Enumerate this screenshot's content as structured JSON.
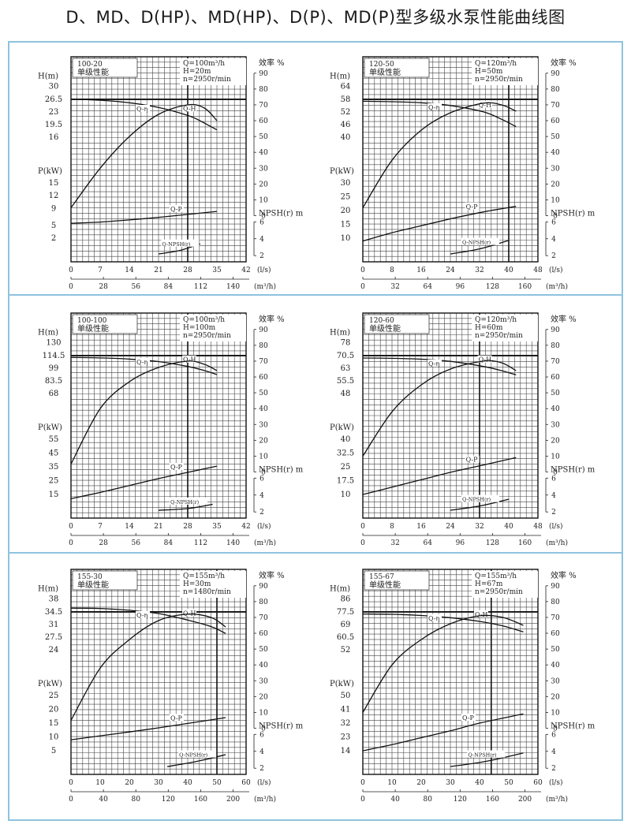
{
  "page": {
    "title": "D、MD、D(HP)、MD(HP)、D(P)、MD(P)型多级水泵性能曲线图"
  },
  "colors": {
    "frame": "#8ec3de",
    "grid": "#333333",
    "curve": "#111111",
    "background": "#ffffff"
  },
  "chart_data": [
    {
      "type": "line",
      "model": "100-20",
      "sub": "单级性能",
      "specs": [
        "Q=100m³/h",
        "H=20m",
        "n=2950r/min"
      ],
      "x_unit": "(l/s)",
      "x2_unit": "(m³/h)",
      "x_ticks": [
        "0",
        "7",
        "14",
        "21",
        "28",
        "35",
        "42"
      ],
      "x_max": 42,
      "x2_ticks": [
        "0",
        "28",
        "56",
        "84",
        "112",
        "140"
      ],
      "x2_max": 151.2,
      "h_label": "H(m)",
      "h_ticks": [
        "30",
        "26.5",
        "23",
        "19.5",
        "16"
      ],
      "p_label": "P(kW)",
      "p_ticks": [
        "15",
        "12",
        "9",
        "5",
        "2"
      ],
      "eff_label": "效率 %",
      "eff_ticks": [
        "90",
        "80",
        "70",
        "60",
        "50",
        "40",
        "30",
        "20",
        "10",
        "0"
      ],
      "npsh_label": "NPSH(r) m",
      "npsh_ticks": [
        "6",
        "4",
        "2"
      ],
      "guide_x": 28,
      "series": [
        {
          "name": "Q-H",
          "x": [
            0,
            7,
            14,
            21,
            28,
            31,
            35
          ],
          "y": [
            26.5,
            26.2,
            25.5,
            24.2,
            22,
            20.5,
            18
          ]
        },
        {
          "name": "Q-η",
          "x": [
            0,
            7,
            14,
            21,
            28,
            32,
            35
          ],
          "y": [
            5,
            30,
            50,
            64,
            70,
            68,
            60
          ]
        },
        {
          "name": "Q-P",
          "x": [
            0,
            7,
            14,
            21,
            28,
            35
          ],
          "y": [
            5.5,
            5.8,
            6.3,
            6.9,
            7.6,
            8.3
          ]
        },
        {
          "name": "Q-NPSH(r)",
          "x": [
            21,
            26,
            31
          ],
          "y": [
            2.2,
            2.6,
            3.4
          ]
        }
      ]
    },
    {
      "type": "line",
      "model": "120-50",
      "sub": "单级性能",
      "specs": [
        "Q=120m³/h",
        "H=50m",
        "n=2950r/min"
      ],
      "x_unit": "(l/s)",
      "x2_unit": "(m³/h)",
      "x_ticks": [
        "0",
        "8",
        "16",
        "24",
        "32",
        "40",
        "48"
      ],
      "x_max": 48,
      "x2_ticks": [
        "0",
        "32",
        "64",
        "96",
        "128",
        "160"
      ],
      "x2_max": 172.8,
      "h_label": "H(m)",
      "h_ticks": [
        "64",
        "58",
        "52",
        "46",
        "40"
      ],
      "p_label": "P(kW)",
      "p_ticks": [
        "30",
        "25",
        "20",
        "15",
        "10"
      ],
      "eff_label": "效率 %",
      "eff_ticks": [
        "90",
        "80",
        "70",
        "60",
        "50",
        "40",
        "30",
        "20",
        "10",
        "0"
      ],
      "npsh_label": "NPSH(r) m",
      "npsh_ticks": [
        "6",
        "4",
        "2"
      ],
      "guide_x": 40,
      "series": [
        {
          "name": "Q-H",
          "x": [
            0,
            8,
            16,
            24,
            33,
            38,
            42
          ],
          "y": [
            57,
            56.8,
            56.3,
            55,
            52,
            48.5,
            45
          ]
        },
        {
          "name": "Q-η",
          "x": [
            0,
            8,
            16,
            24,
            33,
            38,
            42
          ],
          "y": [
            5,
            35,
            54,
            65,
            71,
            70,
            66
          ]
        },
        {
          "name": "Q-P",
          "x": [
            0,
            8,
            16,
            24,
            33,
            42
          ],
          "y": [
            9,
            12,
            14.5,
            17,
            19.5,
            21.5
          ]
        },
        {
          "name": "Q-NPSH(r)",
          "x": [
            24,
            32,
            40
          ],
          "y": [
            2.2,
            2.8,
            3.8
          ]
        }
      ]
    },
    {
      "type": "line",
      "model": "100-100",
      "sub": "单级性能",
      "specs": [
        "Q=100m³/h",
        "H=100m",
        "n=2950r/min"
      ],
      "x_unit": "(l/s)",
      "x2_unit": "(m³/h)",
      "x_ticks": [
        "0",
        "7",
        "14",
        "21",
        "28",
        "35",
        "42"
      ],
      "x_max": 42,
      "x2_ticks": [
        "0",
        "28",
        "56",
        "84",
        "112",
        "140"
      ],
      "x2_max": 151.2,
      "h_label": "H(m)",
      "h_ticks": [
        "130",
        "114.5",
        "99",
        "83.5",
        "68"
      ],
      "p_label": "P(kW)",
      "p_ticks": [
        "55",
        "45",
        "35",
        "25",
        "15"
      ],
      "eff_label": "效率 %",
      "eff_ticks": [
        "90",
        "80",
        "70",
        "60",
        "50",
        "40",
        "30",
        "20",
        "10",
        "0"
      ],
      "npsh_label": "NPSH(r) m",
      "npsh_ticks": [
        "6",
        "4",
        "2"
      ],
      "guide_x": 28,
      "series": [
        {
          "name": "Q-H",
          "x": [
            0,
            7,
            14,
            21,
            28,
            32,
            35
          ],
          "y": [
            112,
            111.5,
            110,
            107,
            101,
            96,
            91
          ]
        },
        {
          "name": "Q-η",
          "x": [
            0,
            7,
            14,
            21,
            28,
            32,
            35
          ],
          "y": [
            5,
            40,
            57,
            66,
            70,
            68,
            64
          ]
        },
        {
          "name": "Q-P",
          "x": [
            0,
            7,
            14,
            21,
            28,
            35
          ],
          "y": [
            12,
            16.5,
            21.5,
            26.5,
            31,
            35.5
          ]
        },
        {
          "name": "Q-NPSH(r)",
          "x": [
            21,
            28,
            34
          ],
          "y": [
            2.2,
            2.4,
            2.9
          ]
        }
      ]
    },
    {
      "type": "line",
      "model": "120-60",
      "sub": "单级性能",
      "specs": [
        "Q=120m³/h",
        "H=60m",
        "n=2950r/min"
      ],
      "x_unit": "(l/s)",
      "x2_unit": "(m³/h)",
      "x_ticks": [
        "0",
        "8",
        "16",
        "24",
        "32",
        "40",
        "48"
      ],
      "x_max": 48,
      "x2_ticks": [
        "0",
        "32",
        "64",
        "96",
        "128",
        "160"
      ],
      "x2_max": 172.8,
      "h_label": "H(m)",
      "h_ticks": [
        "78",
        "70.5",
        "63",
        "55.5",
        "48"
      ],
      "p_label": "P(kW)",
      "p_ticks": [
        "40",
        "32.5",
        "25",
        "17.5",
        "10"
      ],
      "eff_label": "效率 %",
      "eff_ticks": [
        "90",
        "80",
        "70",
        "60",
        "50",
        "40",
        "30",
        "20",
        "10",
        "0"
      ],
      "npsh_label": "NPSH(r) m",
      "npsh_ticks": [
        "6",
        "4",
        "2"
      ],
      "guide_x": 32,
      "series": [
        {
          "name": "Q-H",
          "x": [
            0,
            8,
            16,
            24,
            33,
            38,
            42
          ],
          "y": [
            69,
            68.8,
            68.3,
            67,
            64,
            61.5,
            59
          ]
        },
        {
          "name": "Q-η",
          "x": [
            0,
            8,
            16,
            24,
            33,
            38,
            42
          ],
          "y": [
            10,
            38,
            55,
            65,
            70,
            69,
            64
          ]
        },
        {
          "name": "Q-P",
          "x": [
            0,
            8,
            16,
            24,
            33,
            42
          ],
          "y": [
            10,
            14,
            18,
            22,
            26,
            30
          ]
        },
        {
          "name": "Q-NPSH(r)",
          "x": [
            24,
            32,
            40
          ],
          "y": [
            2.2,
            2.7,
            3.5
          ]
        }
      ]
    },
    {
      "type": "line",
      "model": "155-30",
      "sub": "单级性能",
      "specs": [
        "Q=155m³/h",
        "H=30m",
        "n=1480r/min"
      ],
      "x_unit": "(l/s)",
      "x2_unit": "(m³/h)",
      "x_ticks": [
        "0",
        "10",
        "20",
        "30",
        "40",
        "50",
        "60"
      ],
      "x_max": 60,
      "x2_ticks": [
        "0",
        "40",
        "80",
        "120",
        "160",
        "200"
      ],
      "x2_max": 216,
      "h_label": "H(m)",
      "h_ticks": [
        "38",
        "34.5",
        "31",
        "27.5",
        "24"
      ],
      "p_label": "P(kW)",
      "p_ticks": [
        "25",
        "20",
        "15",
        "10",
        "5"
      ],
      "eff_label": "效率 %",
      "eff_ticks": [
        "90",
        "80",
        "70",
        "60",
        "50",
        "40",
        "30",
        "20",
        "10",
        "0"
      ],
      "npsh_label": "NPSH(r) m",
      "npsh_ticks": [
        "6",
        "4",
        "2"
      ],
      "guide_x": 50,
      "series": [
        {
          "name": "Q-H",
          "x": [
            0,
            10,
            20,
            30,
            40,
            48,
            53
          ],
          "y": [
            35.5,
            35.4,
            34.9,
            34,
            32.2,
            30.4,
            28.5
          ]
        },
        {
          "name": "Q-η",
          "x": [
            0,
            10,
            20,
            30,
            40,
            48,
            53
          ],
          "y": [
            5,
            38,
            56,
            68,
            72,
            70,
            64
          ]
        },
        {
          "name": "Q-P",
          "x": [
            0,
            10,
            20,
            30,
            40,
            53
          ],
          "y": [
            9,
            10.4,
            11.8,
            13.3,
            14.9,
            17
          ]
        },
        {
          "name": "Q-NPSH(r)",
          "x": [
            33,
            43,
            53
          ],
          "y": [
            2.2,
            2.8,
            3.6
          ]
        }
      ]
    },
    {
      "type": "line",
      "model": "155-67",
      "sub": "单级性能",
      "specs": [
        "Q=155m³/h",
        "H=67m",
        "n=2950r/min"
      ],
      "x_unit": "(l/s)",
      "x2_unit": "(m³/h)",
      "x_ticks": [
        "0",
        "10",
        "20",
        "30",
        "40",
        "50",
        "60"
      ],
      "x_max": 60,
      "x2_ticks": [
        "0",
        "40",
        "80",
        "120",
        "160",
        "200"
      ],
      "x2_max": 216,
      "h_label": "H(m)",
      "h_ticks": [
        "86",
        "77.5",
        "69",
        "60.5",
        "52"
      ],
      "p_label": "P(kW)",
      "p_ticks": [
        "50",
        "41",
        "32",
        "23",
        "14"
      ],
      "eff_label": "效率 %",
      "eff_ticks": [
        "90",
        "80",
        "70",
        "60",
        "50",
        "40",
        "30",
        "20",
        "10",
        "0"
      ],
      "npsh_label": "NPSH(r) m",
      "npsh_ticks": [
        "6",
        "4",
        "2"
      ],
      "guide_x": 44,
      "series": [
        {
          "name": "Q-H",
          "x": [
            0,
            10,
            20,
            30,
            40,
            48,
            55
          ],
          "y": [
            76,
            75.8,
            75,
            73.5,
            71,
            68,
            64
          ]
        },
        {
          "name": "Q-η",
          "x": [
            0,
            10,
            20,
            30,
            40,
            48,
            55
          ],
          "y": [
            10,
            40,
            56,
            66,
            71,
            70,
            65
          ]
        },
        {
          "name": "Q-P",
          "x": [
            0,
            10,
            20,
            30,
            40,
            55
          ],
          "y": [
            14,
            18,
            22.5,
            27,
            32,
            38
          ]
        },
        {
          "name": "Q-NPSH(r)",
          "x": [
            30,
            42,
            55
          ],
          "y": [
            2.2,
            2.8,
            3.8
          ]
        }
      ]
    }
  ]
}
